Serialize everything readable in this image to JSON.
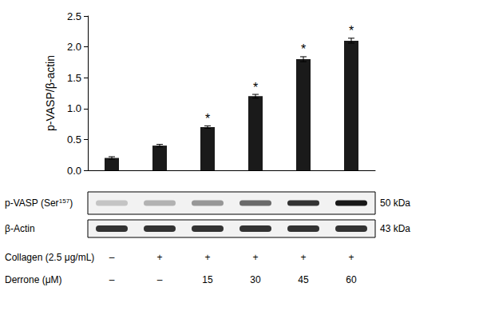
{
  "chart_data": {
    "type": "bar",
    "y_label": "p-VASP/β-actin",
    "categories": [
      null,
      null,
      null,
      null,
      null,
      null
    ],
    "values": [
      0.2,
      0.4,
      0.7,
      1.2,
      1.8,
      2.1
    ],
    "error": [
      0.02,
      0.02,
      0.02,
      0.03,
      0.04,
      0.04
    ],
    "color": "#1a1a1a",
    "ylim": [
      0,
      2.5
    ],
    "yticks": [
      {
        "value": 0,
        "label": "0.0"
      },
      {
        "value": 0.5,
        "label": "0.5"
      },
      {
        "value": 1,
        "label": "1.0"
      },
      {
        "value": 1.5,
        "label": "1.5"
      },
      {
        "value": 2,
        "label": "2.0"
      },
      {
        "value": 2.5,
        "label": "2.5"
      }
    ],
    "grid": false,
    "tick_labels": "y",
    "annotations": [
      {
        "index": 2,
        "text": "*"
      },
      {
        "index": 3,
        "text": "*"
      },
      {
        "index": 4,
        "text": "*"
      },
      {
        "index": 5,
        "text": "*"
      }
    ],
    "blot": [
      {
        "label": "p-VASP (Ser",
        "superscript": "157",
        "label_end": ")",
        "size": "50 kDa"
      },
      {
        "label": "β-Actin",
        "size": "43 kDa"
      }
    ],
    "conditions": [
      {
        "label": "Collagen (2.5 μg/mL)",
        "values": [
          "–",
          "+",
          "+",
          "+",
          "+",
          "+"
        ]
      },
      {
        "label": "Derrone (μM)",
        "values": [
          "–",
          "–",
          15,
          30,
          45,
          60
        ]
      }
    ]
  }
}
